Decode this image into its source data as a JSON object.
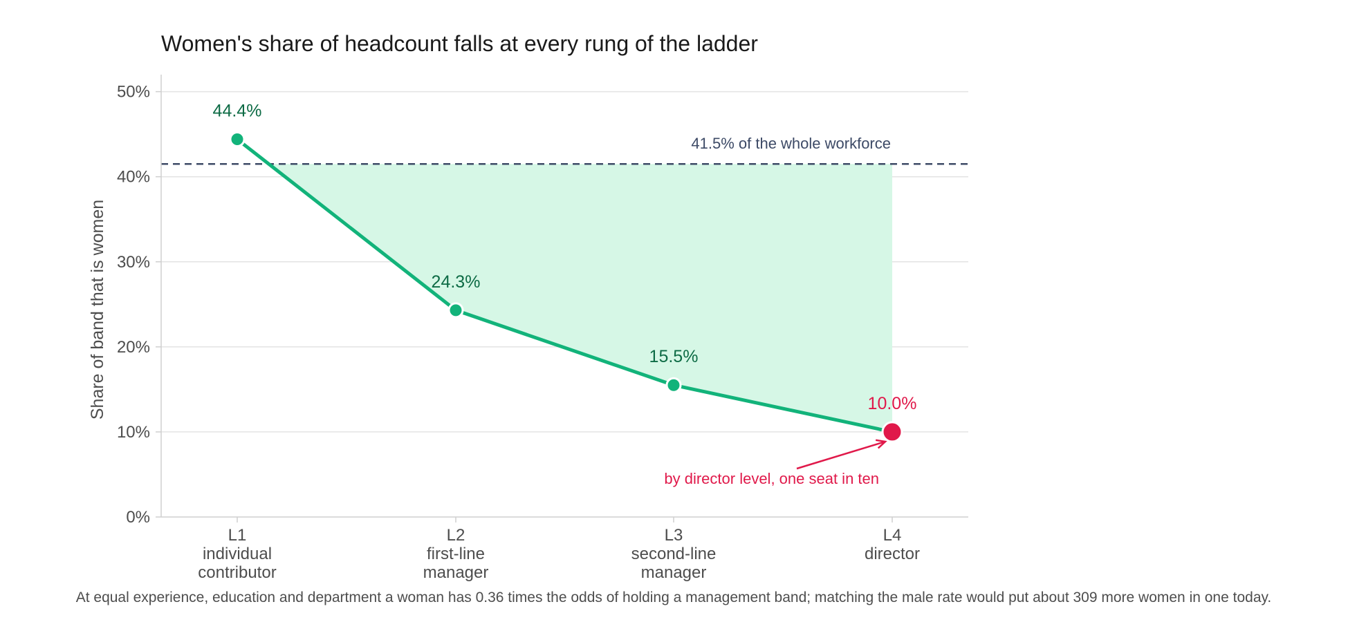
{
  "chart_data": {
    "type": "line",
    "title": "Women's share of headcount falls at every rung of the ladder",
    "ylabel": "Share of band that is women",
    "ylim": [
      0,
      52
    ],
    "yticks": [
      {
        "value": 0,
        "label": "0%"
      },
      {
        "value": 10,
        "label": "10%"
      },
      {
        "value": 20,
        "label": "20%"
      },
      {
        "value": 30,
        "label": "30%"
      },
      {
        "value": 40,
        "label": "40%"
      },
      {
        "value": 50,
        "label": "50%"
      }
    ],
    "grid": true,
    "categories": [
      {
        "code": "L1",
        "line1": "individual",
        "line2": "contributor"
      },
      {
        "code": "L2",
        "line1": "first-line",
        "line2": "manager"
      },
      {
        "code": "L3",
        "line1": "second-line",
        "line2": "manager"
      },
      {
        "code": "L4",
        "line1": "director",
        "line2": ""
      }
    ],
    "values": [
      44.4,
      24.3,
      15.5,
      10.0
    ],
    "data_labels": [
      "44.4%",
      "24.3%",
      "15.5%",
      "10.0%"
    ],
    "highlight_index": 3,
    "reference": {
      "value": 41.5,
      "label": "41.5% of the whole workforce"
    },
    "annotation": "by director level, one seat in ten",
    "footnote": "At equal experience, education and department a woman has 0.36 times the odds of holding a management band; matching the male rate would put about 309 more women in one today.",
    "colors": {
      "line": "#12b37a",
      "label": "#0d6b45",
      "fill": "#d6f7e6",
      "highlight": "#e0194a",
      "reference": "#3d4a66",
      "grid": "#e3e3e3",
      "axis": "#cfcfcf"
    }
  }
}
